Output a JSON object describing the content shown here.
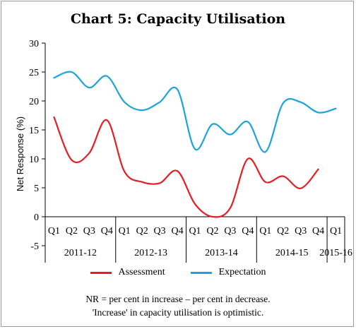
{
  "chart_data": {
    "type": "line",
    "title": "Chart 5: Capacity Utilisation",
    "ylabel": "Net Response (%)",
    "xlabel": "",
    "ylim": [
      -5,
      30
    ],
    "yticks": [
      -5,
      0,
      5,
      10,
      15,
      20,
      25,
      30
    ],
    "categories": [
      "Q1",
      "Q2",
      "Q3",
      "Q4",
      "Q1",
      "Q2",
      "Q3",
      "Q4",
      "Q1",
      "Q2",
      "Q3",
      "Q4",
      "Q1",
      "Q2",
      "Q3",
      "Q4",
      "Q1"
    ],
    "year_groups": [
      {
        "label": "2011-12",
        "count": 4
      },
      {
        "label": "2012-13",
        "count": 4
      },
      {
        "label": "2013-14",
        "count": 4
      },
      {
        "label": "2014-15",
        "count": 4
      },
      {
        "label": "2015-16",
        "count": 1
      }
    ],
    "series": [
      {
        "name": "Assessment",
        "color": "#e31e24",
        "values": [
          17.2,
          9.8,
          11.0,
          16.7,
          7.8,
          6.0,
          5.8,
          7.9,
          2.2,
          0.0,
          1.5,
          10.0,
          6.0,
          7.0,
          4.9,
          8.2,
          null
        ]
      },
      {
        "name": "Expectation",
        "color": "#1ba3dc",
        "values": [
          24.0,
          25.0,
          22.3,
          24.3,
          19.8,
          18.4,
          19.8,
          22.0,
          11.7,
          16.0,
          14.2,
          16.4,
          11.2,
          19.6,
          19.8,
          18.0,
          18.7
        ]
      }
    ],
    "grid": false,
    "legend_position": "bottom"
  },
  "footnote": {
    "line1": "NR = per cent in increase – per cent in decrease.",
    "line2": "'Increase' in capacity utilisation is optimistic."
  }
}
